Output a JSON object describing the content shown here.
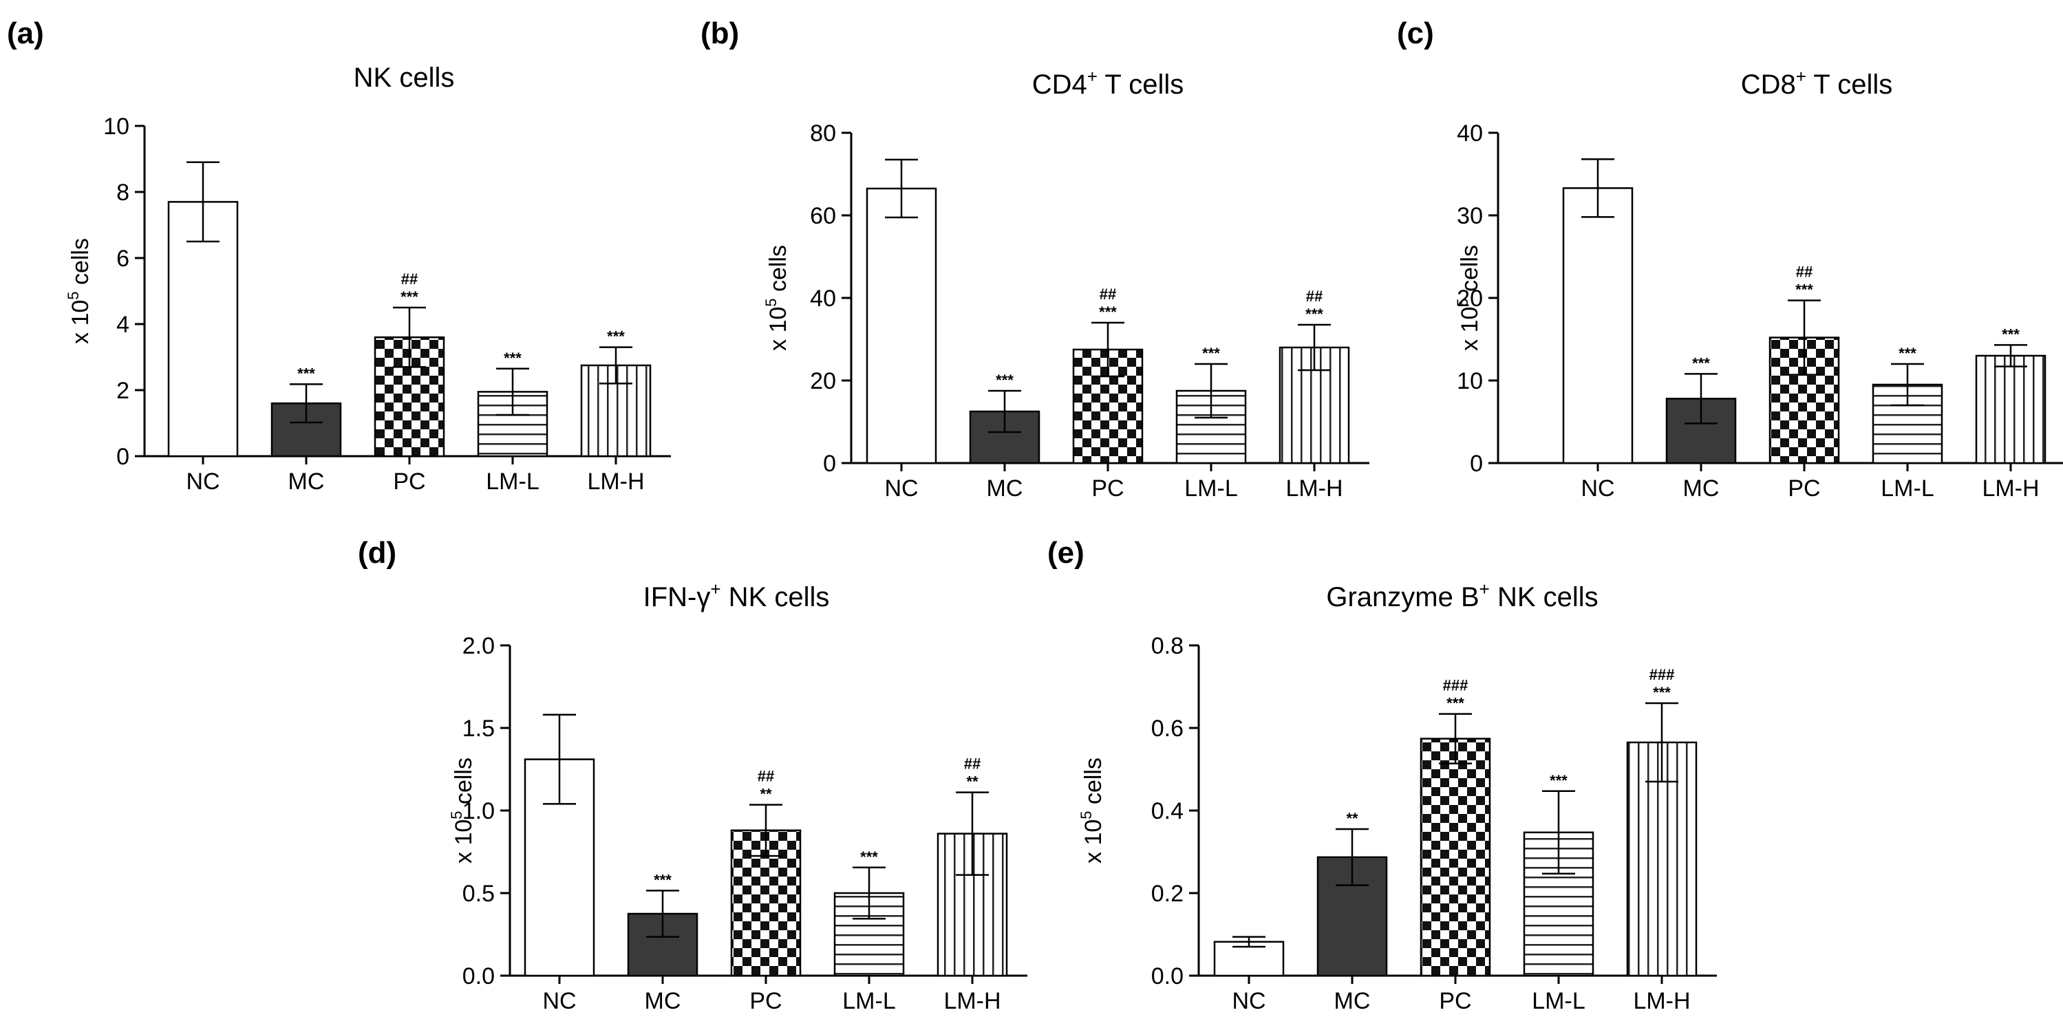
{
  "chart_data": [
    {
      "panel": "(a)",
      "type": "bar",
      "title": "NK cells",
      "title_sup": "",
      "title_after": "",
      "ylabel": "x 10",
      "ylabel_sup": "5",
      "ylabel_after": " cells",
      "ylim": [
        0,
        10
      ],
      "yticks": [
        0,
        2,
        4,
        6,
        8,
        10
      ],
      "yticklabels": [
        "0",
        "2",
        "4",
        "6",
        "8",
        "10"
      ],
      "categories": [
        "NC",
        "MC",
        "PC",
        "LM-L",
        "LM-H"
      ],
      "values": [
        7.7,
        1.6,
        3.6,
        1.95,
        2.75
      ],
      "errors": [
        1.2,
        0.58,
        0.9,
        0.7,
        0.55
      ],
      "significance": [
        {
          "stars": "",
          "hashes": ""
        },
        {
          "stars": "***",
          "hashes": ""
        },
        {
          "stars": "***",
          "hashes": "##"
        },
        {
          "stars": "***",
          "hashes": ""
        },
        {
          "stars": "***",
          "hashes": ""
        }
      ]
    },
    {
      "panel": "(b)",
      "type": "bar",
      "title": "CD4",
      "title_sup": "+",
      "title_after": " T cells",
      "ylabel": "x 10",
      "ylabel_sup": "5",
      "ylabel_after": " cells",
      "ylim": [
        0,
        80
      ],
      "yticks": [
        0,
        20,
        40,
        60,
        80
      ],
      "yticklabels": [
        "0",
        "20",
        "40",
        "60",
        "80"
      ],
      "categories": [
        "NC",
        "MC",
        "PC",
        "LM-L",
        "LM-H"
      ],
      "values": [
        66.5,
        12.5,
        27.5,
        17.5,
        28
      ],
      "errors": [
        7,
        5,
        6.5,
        6.5,
        5.5
      ],
      "significance": [
        {
          "stars": "",
          "hashes": ""
        },
        {
          "stars": "***",
          "hashes": ""
        },
        {
          "stars": "***",
          "hashes": "##"
        },
        {
          "stars": "***",
          "hashes": ""
        },
        {
          "stars": "***",
          "hashes": "##"
        }
      ]
    },
    {
      "panel": "(c)",
      "type": "bar",
      "title": "CD8",
      "title_sup": "+",
      "title_after": " T cells",
      "ylabel": "x 10",
      "ylabel_sup": "5",
      "ylabel_after": " cells",
      "ylim": [
        0,
        40
      ],
      "yticks": [
        0,
        10,
        20,
        30,
        40
      ],
      "yticklabels": [
        "0",
        "10",
        "20",
        "30",
        "40"
      ],
      "categories": [
        "NC",
        "MC",
        "PC",
        "LM-L",
        "LM-H"
      ],
      "values": [
        33.3,
        7.8,
        15.2,
        9.5,
        13
      ],
      "errors": [
        3.5,
        3,
        4.5,
        2.5,
        1.3
      ],
      "significance": [
        {
          "stars": "",
          "hashes": ""
        },
        {
          "stars": "***",
          "hashes": ""
        },
        {
          "stars": "***",
          "hashes": "##"
        },
        {
          "stars": "***",
          "hashes": ""
        },
        {
          "stars": "***",
          "hashes": ""
        }
      ]
    },
    {
      "panel": "(d)",
      "type": "bar",
      "title": "IFN-γ",
      "title_sup": "+",
      "title_after": "  NK cells",
      "ylabel": "x 10",
      "ylabel_sup": "5",
      "ylabel_after": " cells",
      "ylim": [
        0,
        2.0
      ],
      "yticks": [
        0,
        0.5,
        1.0,
        1.5,
        2.0
      ],
      "yticklabels": [
        "0.0",
        "0.5",
        "1.0",
        "1.5",
        "2.0"
      ],
      "categories": [
        "NC",
        "MC",
        "PC",
        "LM-L",
        "LM-H"
      ],
      "values": [
        1.31,
        0.375,
        0.88,
        0.5,
        0.86
      ],
      "errors": [
        0.27,
        0.14,
        0.155,
        0.155,
        0.25
      ],
      "significance": [
        {
          "stars": "",
          "hashes": ""
        },
        {
          "stars": "***",
          "hashes": ""
        },
        {
          "stars": "**",
          "hashes": "##"
        },
        {
          "stars": "***",
          "hashes": ""
        },
        {
          "stars": "**",
          "hashes": "##"
        }
      ]
    },
    {
      "panel": "(e)",
      "type": "bar",
      "title": "Granzyme B",
      "title_sup": "+",
      "title_after": " NK cells",
      "ylabel": "x 10",
      "ylabel_sup": "5",
      "ylabel_after": " cells",
      "ylim": [
        0,
        0.8
      ],
      "yticks": [
        0,
        0.2,
        0.4,
        0.6,
        0.8
      ],
      "yticklabels": [
        "0.0",
        "0.2",
        "0.4",
        "0.6",
        "0.8"
      ],
      "categories": [
        "NC",
        "MC",
        "PC",
        "LM-L",
        "LM-H"
      ],
      "values": [
        0.082,
        0.287,
        0.574,
        0.347,
        0.565
      ],
      "errors": [
        0.012,
        0.068,
        0.06,
        0.1,
        0.095
      ],
      "significance": [
        {
          "stars": "",
          "hashes": ""
        },
        {
          "stars": "**",
          "hashes": ""
        },
        {
          "stars": "***",
          "hashes": "###"
        },
        {
          "stars": "***",
          "hashes": ""
        },
        {
          "stars": "***",
          "hashes": "###"
        }
      ]
    }
  ]
}
